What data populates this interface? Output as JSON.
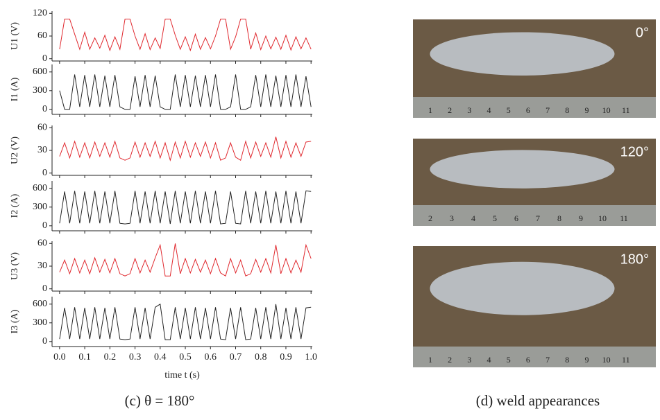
{
  "chart_data": [
    {
      "type": "line",
      "ylabel": "U1 (V)",
      "color": "#e0282e",
      "ylim": [
        -6,
        126
      ],
      "yticks": [
        0,
        60,
        120
      ],
      "x": [
        0,
        0.02,
        0.04,
        0.06,
        0.08,
        0.1,
        0.12,
        0.14,
        0.16,
        0.18,
        0.2,
        0.22,
        0.24,
        0.26,
        0.28,
        0.3,
        0.32,
        0.34,
        0.36,
        0.38,
        0.4,
        0.42,
        0.44,
        0.46,
        0.48,
        0.5,
        0.52,
        0.54,
        0.56,
        0.58,
        0.6,
        0.62,
        0.64,
        0.66,
        0.68,
        0.7,
        0.72,
        0.74,
        0.76,
        0.78,
        0.8,
        0.82,
        0.84,
        0.86,
        0.88,
        0.9,
        0.92,
        0.94,
        0.96,
        0.98,
        1.0
      ],
      "values": [
        25,
        105,
        105,
        65,
        25,
        70,
        25,
        55,
        28,
        62,
        22,
        58,
        25,
        105,
        105,
        60,
        25,
        66,
        24,
        55,
        27,
        105,
        105,
        62,
        25,
        58,
        22,
        65,
        25,
        56,
        26,
        60,
        105,
        105,
        25,
        58,
        105,
        105,
        25,
        68,
        24,
        60,
        26,
        57,
        25,
        62,
        23,
        58,
        26,
        55,
        25
      ]
    },
    {
      "type": "line",
      "ylabel": "I1 (A)",
      "color": "#222222",
      "ylim": [
        -80,
        720
      ],
      "yticks": [
        0,
        300,
        600
      ],
      "x": [
        0,
        0.02,
        0.04,
        0.06,
        0.08,
        0.1,
        0.12,
        0.14,
        0.16,
        0.18,
        0.2,
        0.22,
        0.24,
        0.26,
        0.28,
        0.3,
        0.32,
        0.34,
        0.36,
        0.38,
        0.4,
        0.42,
        0.44,
        0.46,
        0.48,
        0.5,
        0.52,
        0.54,
        0.56,
        0.58,
        0.6,
        0.62,
        0.64,
        0.66,
        0.68,
        0.7,
        0.72,
        0.74,
        0.76,
        0.78,
        0.8,
        0.82,
        0.84,
        0.86,
        0.88,
        0.9,
        0.92,
        0.94,
        0.96,
        0.98,
        1.0
      ],
      "values": [
        300,
        0,
        0,
        560,
        40,
        550,
        40,
        560,
        40,
        540,
        40,
        550,
        40,
        0,
        0,
        530,
        40,
        550,
        40,
        540,
        40,
        0,
        0,
        560,
        40,
        550,
        40,
        540,
        40,
        550,
        40,
        560,
        0,
        0,
        40,
        560,
        0,
        0,
        40,
        550,
        40,
        560,
        40,
        540,
        40,
        550,
        40,
        560,
        40,
        530,
        40
      ]
    },
    {
      "type": "line",
      "ylabel": "U2 (V)",
      "color": "#e0282e",
      "ylim": [
        -3,
        63
      ],
      "yticks": [
        0,
        30,
        60
      ],
      "x": [
        0,
        0.02,
        0.04,
        0.06,
        0.08,
        0.1,
        0.12,
        0.14,
        0.16,
        0.18,
        0.2,
        0.22,
        0.24,
        0.26,
        0.28,
        0.3,
        0.32,
        0.34,
        0.36,
        0.38,
        0.4,
        0.42,
        0.44,
        0.46,
        0.48,
        0.5,
        0.52,
        0.54,
        0.56,
        0.58,
        0.6,
        0.62,
        0.64,
        0.66,
        0.68,
        0.7,
        0.72,
        0.74,
        0.76,
        0.78,
        0.8,
        0.82,
        0.84,
        0.86,
        0.88,
        0.9,
        0.92,
        0.94,
        0.96,
        0.98,
        1.0
      ],
      "values": [
        22,
        40,
        20,
        42,
        21,
        40,
        20,
        41,
        22,
        40,
        21,
        42,
        20,
        17,
        20,
        41,
        21,
        40,
        22,
        42,
        20,
        40,
        17,
        41,
        20,
        42,
        21,
        40,
        22,
        41,
        20,
        40,
        17,
        20,
        40,
        21,
        17,
        42,
        20,
        41,
        22,
        40,
        21,
        48,
        20,
        42,
        21,
        40,
        22,
        41,
        42
      ]
    },
    {
      "type": "line",
      "ylabel": "I2 (A)",
      "color": "#222222",
      "ylim": [
        -80,
        720
      ],
      "yticks": [
        0,
        300,
        600
      ],
      "x": [
        0,
        0.02,
        0.04,
        0.06,
        0.08,
        0.1,
        0.12,
        0.14,
        0.16,
        0.18,
        0.2,
        0.22,
        0.24,
        0.26,
        0.28,
        0.3,
        0.32,
        0.34,
        0.36,
        0.38,
        0.4,
        0.42,
        0.44,
        0.46,
        0.48,
        0.5,
        0.52,
        0.54,
        0.56,
        0.58,
        0.6,
        0.62,
        0.64,
        0.66,
        0.68,
        0.7,
        0.72,
        0.74,
        0.76,
        0.78,
        0.8,
        0.82,
        0.84,
        0.86,
        0.88,
        0.9,
        0.92,
        0.94,
        0.96,
        0.98,
        1.0
      ],
      "values": [
        40,
        550,
        40,
        560,
        40,
        550,
        40,
        560,
        40,
        550,
        40,
        560,
        40,
        30,
        40,
        560,
        40,
        550,
        40,
        560,
        40,
        550,
        30,
        560,
        40,
        550,
        40,
        560,
        40,
        550,
        40,
        560,
        30,
        40,
        550,
        40,
        30,
        560,
        40,
        550,
        40,
        560,
        40,
        550,
        40,
        560,
        40,
        550,
        40,
        560,
        550
      ]
    },
    {
      "type": "line",
      "ylabel": "U3 (V)",
      "color": "#e0282e",
      "ylim": [
        -3,
        63
      ],
      "yticks": [
        0,
        30,
        60
      ],
      "x": [
        0,
        0.02,
        0.04,
        0.06,
        0.08,
        0.1,
        0.12,
        0.14,
        0.16,
        0.18,
        0.2,
        0.22,
        0.24,
        0.26,
        0.28,
        0.3,
        0.32,
        0.34,
        0.36,
        0.38,
        0.4,
        0.42,
        0.44,
        0.46,
        0.48,
        0.5,
        0.52,
        0.54,
        0.56,
        0.58,
        0.6,
        0.62,
        0.64,
        0.66,
        0.68,
        0.7,
        0.72,
        0.74,
        0.76,
        0.78,
        0.8,
        0.82,
        0.84,
        0.86,
        0.88,
        0.9,
        0.92,
        0.94,
        0.96,
        0.98,
        1.0
      ],
      "values": [
        22,
        38,
        20,
        40,
        21,
        38,
        20,
        41,
        22,
        39,
        21,
        40,
        20,
        17,
        20,
        40,
        21,
        38,
        22,
        41,
        58,
        17,
        17,
        60,
        20,
        40,
        21,
        39,
        22,
        38,
        20,
        40,
        21,
        17,
        40,
        21,
        38,
        17,
        20,
        39,
        22,
        40,
        21,
        58,
        20,
        40,
        21,
        38,
        22,
        58,
        40
      ]
    },
    {
      "type": "line",
      "ylabel": "I3 (A)",
      "color": "#222222",
      "ylim": [
        -80,
        720
      ],
      "yticks": [
        0,
        300,
        600
      ],
      "xlabel": "time t (s)",
      "xlim": [
        -0.03,
        1.005
      ],
      "xticks": [
        {
          "value": 0,
          "label": "0.0"
        },
        0.1,
        0.2,
        0.3,
        0.4,
        0.5,
        0.6,
        0.7,
        0.8,
        0.9,
        {
          "value": 1,
          "label": "1.0"
        }
      ],
      "x": [
        0,
        0.02,
        0.04,
        0.06,
        0.08,
        0.1,
        0.12,
        0.14,
        0.16,
        0.18,
        0.2,
        0.22,
        0.24,
        0.26,
        0.28,
        0.3,
        0.32,
        0.34,
        0.36,
        0.38,
        0.4,
        0.42,
        0.44,
        0.46,
        0.48,
        0.5,
        0.52,
        0.54,
        0.56,
        0.58,
        0.6,
        0.62,
        0.64,
        0.66,
        0.68,
        0.7,
        0.72,
        0.74,
        0.76,
        0.78,
        0.8,
        0.82,
        0.84,
        0.86,
        0.88,
        0.9,
        0.92,
        0.94,
        0.96,
        0.98,
        1.0
      ],
      "values": [
        40,
        540,
        40,
        550,
        40,
        540,
        40,
        550,
        40,
        540,
        40,
        550,
        40,
        30,
        40,
        550,
        40,
        540,
        40,
        550,
        600,
        30,
        30,
        550,
        40,
        540,
        40,
        550,
        40,
        540,
        40,
        550,
        40,
        30,
        540,
        40,
        550,
        30,
        40,
        540,
        40,
        550,
        40,
        600,
        40,
        540,
        40,
        550,
        40,
        540,
        550
      ]
    }
  ],
  "captions": [
    "(c) θ = 180°",
    "(d) weld appearances"
  ],
  "photos": [
    {
      "label": "0°",
      "ruler": [
        "1",
        "2",
        "3",
        "4",
        "5",
        "6",
        "7",
        "8",
        "9",
        "10",
        "11"
      ]
    },
    {
      "label": "120°",
      "ruler": [
        "2",
        "3",
        "4",
        "5",
        "6",
        "7",
        "8",
        "9",
        "10",
        "11"
      ]
    },
    {
      "label": "180°",
      "ruler": [
        "1",
        "2",
        "3",
        "4",
        "5",
        "6",
        "7",
        "8",
        "9",
        "10",
        "11"
      ]
    }
  ]
}
